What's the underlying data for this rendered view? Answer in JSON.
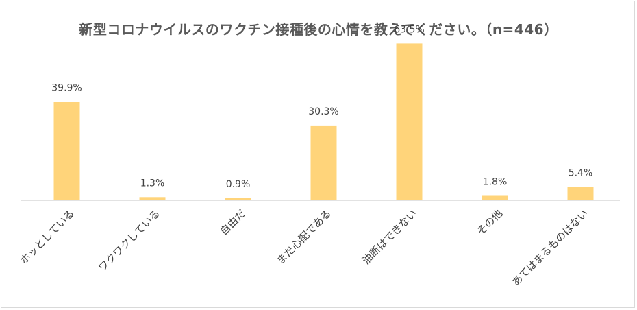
{
  "chart_data": {
    "type": "bar",
    "title": "新型コロナウイルスのワクチン接種後の心情を教えてください。（n=446）",
    "categories": [
      "ホッとしている",
      "ワクワクしている",
      "自由だ",
      "まだ心配である",
      "油断はできない",
      "その他",
      "あてはまるものはない"
    ],
    "values": [
      39.9,
      1.3,
      0.9,
      30.3,
      63.5,
      1.8,
      5.4
    ],
    "value_labels": [
      "39.9%",
      "1.3%",
      "0.9%",
      "30.3%",
      "63.5%",
      "1.8%",
      "5.4%"
    ],
    "unit": "%",
    "ylim": [
      0,
      70
    ],
    "grid": false,
    "bar_color": "#FFD47A",
    "axis_color": "#d9d9d9",
    "label_color": "#404040"
  }
}
